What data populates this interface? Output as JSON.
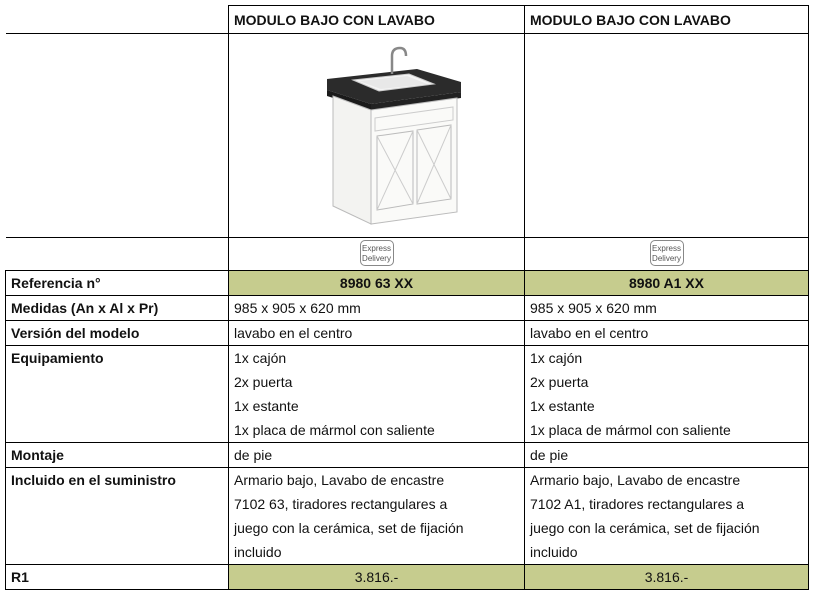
{
  "table": {
    "headers": [
      "MODULO BAJO CON LAVABO",
      "MODULO BAJO CON LAVABO"
    ],
    "badges": [
      {
        "line1": "Express",
        "line2": "Delivery"
      },
      {
        "line1": "Express",
        "line2": "Delivery"
      }
    ],
    "rows": [
      {
        "label": "Referencia n°",
        "style": "green-bold",
        "cells": [
          [
            "8980 63 XX"
          ],
          [
            "8980 A1 XX"
          ]
        ]
      },
      {
        "label": "Medidas (An x Al x Pr)",
        "cells": [
          [
            "985 x 905 x 620 mm"
          ],
          [
            "985 x 905 x 620 mm"
          ]
        ]
      },
      {
        "label": "Versión del modelo",
        "cells": [
          [
            "lavabo en el centro"
          ],
          [
            "lavabo en el centro"
          ]
        ]
      },
      {
        "label": "Equipamiento",
        "cells": [
          [
            "1x cajón",
            "2x puerta",
            "1x estante",
            "1x placa de mármol con saliente"
          ],
          [
            "1x cajón",
            "2x puerta",
            "1x estante",
            "1x placa de mármol con saliente"
          ]
        ]
      },
      {
        "label": "Montaje",
        "cells": [
          [
            "de pie"
          ],
          [
            "de pie"
          ]
        ]
      },
      {
        "label": "Incluido en el suministro",
        "cells": [
          [
            "Armario bajo, Lavabo de encastre",
            "7102 63, tiradores rectangulares a",
            "juego con la cerámica, set de fijación",
            "incluido"
          ],
          [
            "Armario bajo, Lavabo de encastre",
            "7102 A1, tiradores rectangulares a",
            "juego con la cerámica, set de fijación",
            "incluido"
          ]
        ]
      },
      {
        "label": "R1",
        "style": "green",
        "cells": [
          [
            "3.816.-"
          ],
          [
            "3.816.-"
          ]
        ]
      }
    ]
  }
}
